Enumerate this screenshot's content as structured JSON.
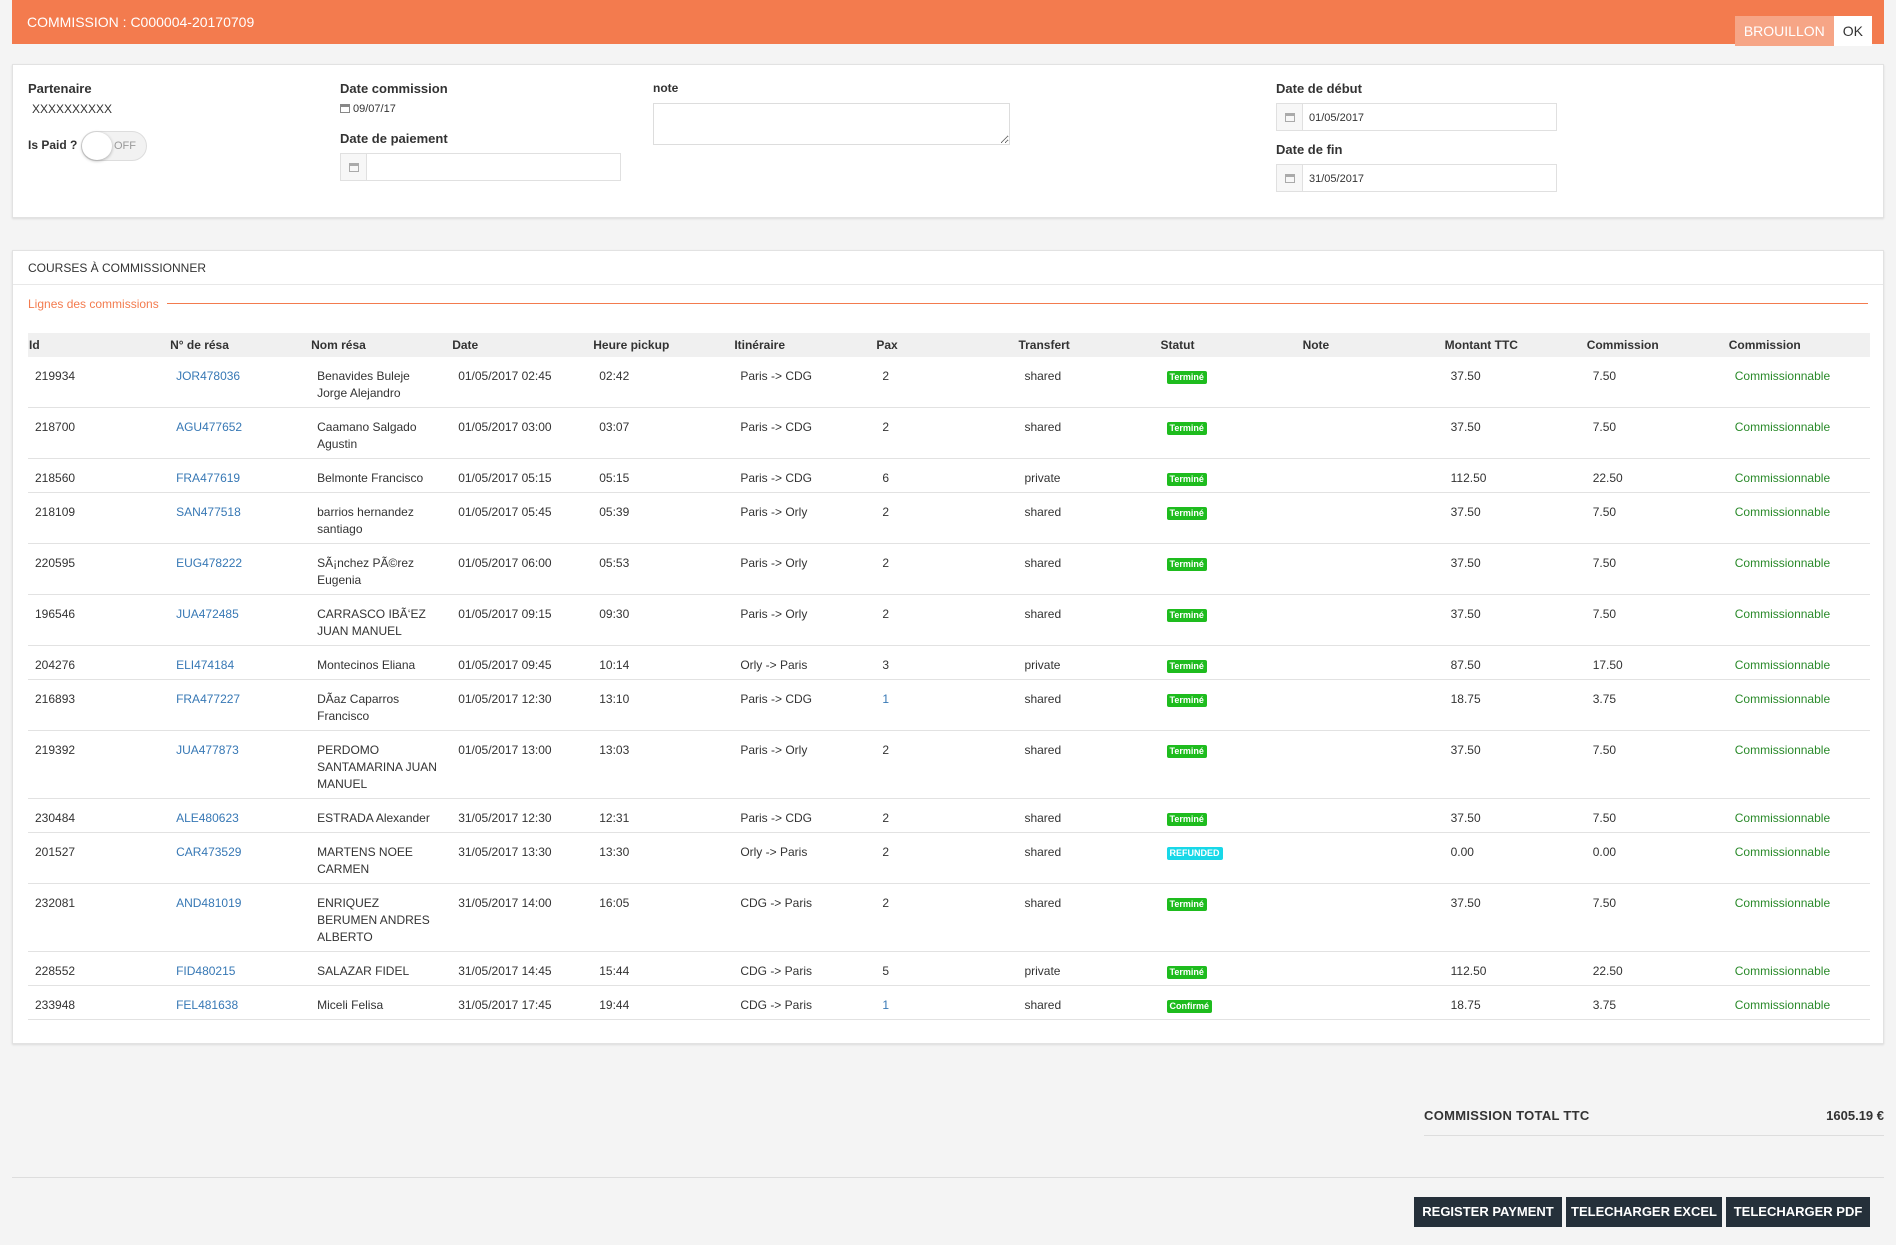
{
  "header": {
    "title": "COMMISSION : C000004-20170709",
    "status_draft": "BROUILLON",
    "status_ok": "OK"
  },
  "form": {
    "partenaire_label": "Partenaire",
    "partenaire_value": "XXXXXXXXXX",
    "is_paid_label": "Is Paid ?",
    "is_paid_state": "OFF",
    "date_commission_label": "Date commission",
    "date_commission_value": "09/07/17",
    "date_paiement_label": "Date de paiement",
    "date_paiement_value": "",
    "note_label": "note",
    "note_value": "",
    "date_debut_label": "Date de début",
    "date_debut_value": "01/05/2017",
    "date_fin_label": "Date de fin",
    "date_fin_value": "31/05/2017"
  },
  "courses": {
    "panel_title": "COURSES À COMMISSIONNER",
    "section_title": "Lignes des commissions",
    "columns": [
      "Id",
      "N° de résa",
      "Nom résa",
      "Date",
      "Heure pickup",
      "Itinéraire",
      "Pax",
      "Transfert",
      "Statut",
      "Note",
      "Montant TTC",
      "Commission",
      "Commission"
    ],
    "rows": [
      {
        "id": "219934",
        "resa": "JOR478036",
        "nom": "Benavides Buleje Jorge Alejandro",
        "date": "01/05/2017 02:45",
        "heure": "02:42",
        "itin": "Paris -> CDG",
        "pax": "2",
        "transfert": "shared",
        "statut": "Terminé",
        "note": "",
        "montant": "37.50",
        "commission": "7.50",
        "etat": "Commissionnable"
      },
      {
        "id": "218700",
        "resa": "AGU477652",
        "nom": "Caamano Salgado Agustin",
        "date": "01/05/2017 03:00",
        "heure": "03:07",
        "itin": "Paris -> CDG",
        "pax": "2",
        "transfert": "shared",
        "statut": "Terminé",
        "note": "",
        "montant": "37.50",
        "commission": "7.50",
        "etat": "Commissionnable"
      },
      {
        "id": "218560",
        "resa": "FRA477619",
        "nom": "Belmonte Francisco",
        "date": "01/05/2017 05:15",
        "heure": "05:15",
        "itin": "Paris -> CDG",
        "pax": "6",
        "transfert": "private",
        "statut": "Terminé",
        "note": "",
        "montant": "112.50",
        "commission": "22.50",
        "etat": "Commissionnable"
      },
      {
        "id": "218109",
        "resa": "SAN477518",
        "nom": "barrios hernandez santiago",
        "date": "01/05/2017 05:45",
        "heure": "05:39",
        "itin": "Paris -> Orly",
        "pax": "2",
        "transfert": "shared",
        "statut": "Terminé",
        "note": "",
        "montant": "37.50",
        "commission": "7.50",
        "etat": "Commissionnable"
      },
      {
        "id": "220595",
        "resa": "EUG478222",
        "nom": "SÃ¡nchez PÃ©rez Eugenia",
        "date": "01/05/2017 06:00",
        "heure": "05:53",
        "itin": "Paris -> Orly",
        "pax": "2",
        "transfert": "shared",
        "statut": "Terminé",
        "note": "",
        "montant": "37.50",
        "commission": "7.50",
        "etat": "Commissionnable"
      },
      {
        "id": "196546",
        "resa": "JUA472485",
        "nom": "CARRASCO IBÃ‘EZ JUAN MANUEL",
        "date": "01/05/2017 09:15",
        "heure": "09:30",
        "itin": "Paris -> Orly",
        "pax": "2",
        "transfert": "shared",
        "statut": "Terminé",
        "note": "",
        "montant": "37.50",
        "commission": "7.50",
        "etat": "Commissionnable"
      },
      {
        "id": "204276",
        "resa": "ELI474184",
        "nom": "Montecinos Eliana",
        "date": "01/05/2017 09:45",
        "heure": "10:14",
        "itin": "Orly -> Paris",
        "pax": "3",
        "transfert": "private",
        "statut": "Terminé",
        "note": "",
        "montant": "87.50",
        "commission": "17.50",
        "etat": "Commissionnable"
      },
      {
        "id": "216893",
        "resa": "FRA477227",
        "nom": "DÃaz Caparros Francisco",
        "date": "01/05/2017 12:30",
        "heure": "13:10",
        "itin": "Paris -> CDG",
        "pax": "1",
        "transfert": "shared",
        "statut": "Terminé",
        "note": "",
        "montant": "18.75",
        "commission": "3.75",
        "etat": "Commissionnable"
      },
      {
        "id": "219392",
        "resa": "JUA477873",
        "nom": "PERDOMO SANTAMARINA JUAN MANUEL",
        "date": "01/05/2017 13:00",
        "heure": "13:03",
        "itin": "Paris -> Orly",
        "pax": "2",
        "transfert": "shared",
        "statut": "Terminé",
        "note": "",
        "montant": "37.50",
        "commission": "7.50",
        "etat": "Commissionnable"
      },
      {
        "id": "230484",
        "resa": "ALE480623",
        "nom": "ESTRADA Alexander",
        "date": "31/05/2017 12:30",
        "heure": "12:31",
        "itin": "Paris -> CDG",
        "pax": "2",
        "transfert": "shared",
        "statut": "Terminé",
        "note": "",
        "montant": "37.50",
        "commission": "7.50",
        "etat": "Commissionnable"
      },
      {
        "id": "201527",
        "resa": "CAR473529",
        "nom": "MARTENS NOEE CARMEN",
        "date": "31/05/2017 13:30",
        "heure": "13:30",
        "itin": "Orly -> Paris",
        "pax": "2",
        "transfert": "shared",
        "statut": "REFUNDED",
        "note": "",
        "montant": "0.00",
        "commission": "0.00",
        "etat": "Commissionnable"
      },
      {
        "id": "232081",
        "resa": "AND481019",
        "nom": "ENRIQUEZ BERUMEN ANDRES ALBERTO",
        "date": "31/05/2017 14:00",
        "heure": "16:05",
        "itin": "CDG -> Paris",
        "pax": "2",
        "transfert": "shared",
        "statut": "Terminé",
        "note": "",
        "montant": "37.50",
        "commission": "7.50",
        "etat": "Commissionnable"
      },
      {
        "id": "228552",
        "resa": "FID480215",
        "nom": "SALAZAR FIDEL",
        "date": "31/05/2017 14:45",
        "heure": "15:44",
        "itin": "CDG -> Paris",
        "pax": "5",
        "transfert": "private",
        "statut": "Terminé",
        "note": "",
        "montant": "112.50",
        "commission": "22.50",
        "etat": "Commissionnable"
      },
      {
        "id": "233948",
        "resa": "FEL481638",
        "nom": "Miceli Felisa",
        "date": "31/05/2017 17:45",
        "heure": "19:44",
        "itin": "CDG -> Paris",
        "pax": "1",
        "transfert": "shared",
        "statut": "Confirmé",
        "note": "",
        "montant": "18.75",
        "commission": "3.75",
        "etat": "Commissionnable"
      }
    ]
  },
  "totals": {
    "label": "COMMISSION TOTAL TTC",
    "value": "1605.19 €"
  },
  "actions": {
    "register": "REGISTER PAYMENT",
    "excel": "TELECHARGER EXCEL",
    "pdf": "TELECHARGER PDF"
  },
  "colors": {
    "accent": "#f37b4e",
    "link": "#3778b5",
    "commissionnable": "#2a8a2a",
    "status_done": "#1ebc1e",
    "status_refunded": "#18d8e8",
    "button_dark": "#25303a"
  }
}
